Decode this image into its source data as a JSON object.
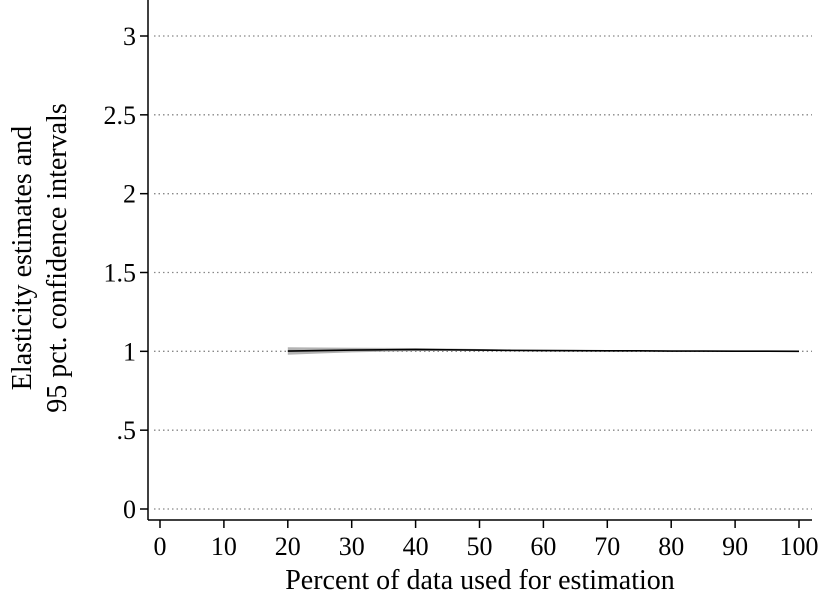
{
  "chart_data": {
    "type": "line",
    "title": "",
    "xlabel": "Percent of data used for estimation",
    "ylabel": [
      "Elasticity estimates and",
      "95 pct. confidence intervals"
    ],
    "xlim": [
      0,
      100
    ],
    "ylim": [
      0,
      3
    ],
    "x_ticks": [
      0,
      10,
      20,
      30,
      40,
      50,
      60,
      70,
      80,
      90,
      100
    ],
    "x_tick_labels": [
      "0",
      "10",
      "20",
      "30",
      "40",
      "50",
      "60",
      "70",
      "80",
      "90",
      "100"
    ],
    "y_ticks": [
      0,
      0.5,
      1,
      1.5,
      2,
      2.5,
      3
    ],
    "y_tick_labels": [
      "0",
      ".5",
      "1",
      "1.5",
      "2",
      "2.5",
      "3"
    ],
    "grid": "horizontal dotted",
    "series": [
      {
        "x": [
          20,
          25,
          30,
          35,
          40,
          45,
          50,
          55,
          60,
          65,
          70,
          75,
          80,
          85,
          90,
          95,
          100
        ],
        "estimate": [
          1.002,
          1.005,
          1.008,
          1.01,
          1.011,
          1.01,
          1.008,
          1.006,
          1.005,
          1.004,
          1.003,
          1.003,
          1.002,
          1.002,
          1.001,
          1.001,
          1.0
        ],
        "ci_lower": [
          0.978,
          0.986,
          0.993,
          0.998,
          1.001,
          1.002,
          1.001,
          1.0,
          1.0,
          0.999,
          0.999,
          0.999,
          0.999,
          0.999,
          0.999,
          0.999,
          0.999
        ],
        "ci_upper": [
          1.026,
          1.024,
          1.023,
          1.022,
          1.021,
          1.018,
          1.015,
          1.012,
          1.01,
          1.009,
          1.007,
          1.007,
          1.005,
          1.005,
          1.003,
          1.003,
          1.001
        ]
      }
    ],
    "colors": {
      "line": "#000000",
      "band": "#b3b3b3",
      "grid": "#888888"
    }
  }
}
